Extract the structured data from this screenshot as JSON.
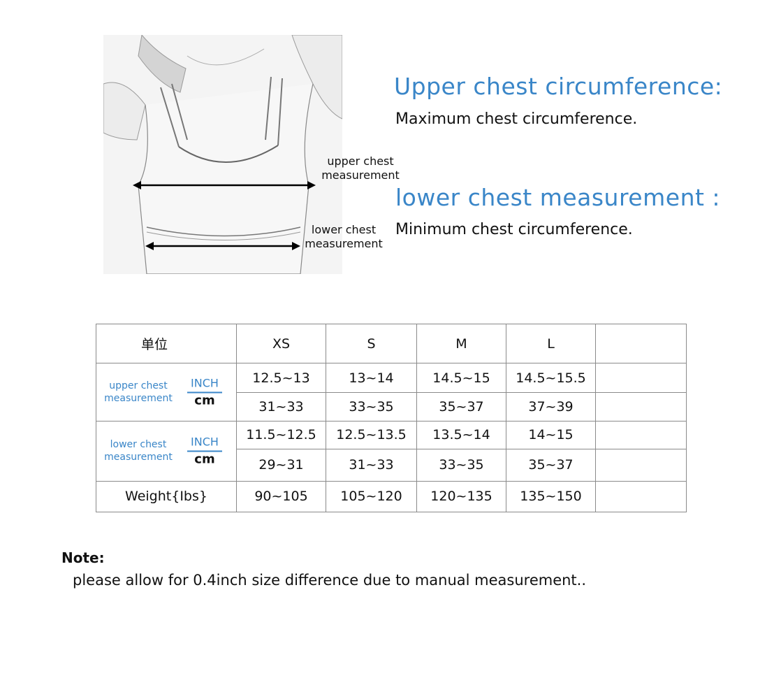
{
  "figure": {
    "upper_label": [
      "upper chest",
      "measurement"
    ],
    "lower_label": [
      "lower chest",
      "measurement"
    ]
  },
  "headings": {
    "upper_title": "Upper chest circumference:",
    "upper_desc": "Maximum chest circumference.",
    "lower_title": "lower chest measurement :",
    "lower_desc": "Minimum chest circumference."
  },
  "table": {
    "unit_header": "单位",
    "sizes": [
      "XS",
      "S",
      "M",
      "L",
      ""
    ],
    "upper_label": [
      "upper chest",
      "measurement"
    ],
    "lower_label": [
      "lower chest",
      "measurement"
    ],
    "unit_inch": "INCH",
    "unit_cm": "cm",
    "upper_inch": [
      "12.5~13",
      "13~14",
      "14.5~15",
      "14.5~15.5",
      ""
    ],
    "upper_cm": [
      "31~33",
      "33~35",
      "35~37",
      "37~39",
      ""
    ],
    "lower_inch": [
      "11.5~12.5",
      "12.5~13.5",
      "13.5~14",
      "14~15",
      ""
    ],
    "lower_cm": [
      "29~31",
      "31~33",
      "33~35",
      "35~37",
      ""
    ],
    "weight_label": "Weight{Ibs}",
    "weight": [
      "90~105",
      "105~120",
      "120~135",
      "135~150",
      ""
    ]
  },
  "note": {
    "title": "Note:",
    "text": "please allow for 0.4inch size difference due to manual measurement.."
  },
  "colors": {
    "accent_blue": "#3a86c8",
    "text": "#111111",
    "border": "#8a8a8a"
  }
}
